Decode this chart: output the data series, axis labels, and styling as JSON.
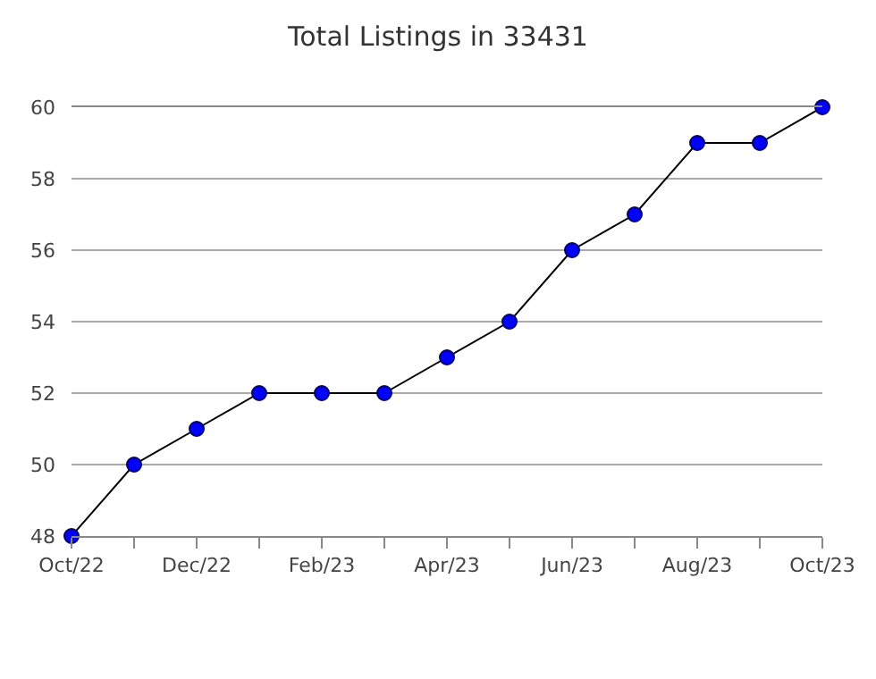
{
  "chart_data": {
    "type": "line",
    "title": "Total Listings in 33431",
    "categories": [
      "Oct/22",
      null,
      "Dec/22",
      null,
      "Feb/23",
      null,
      "Apr/23",
      null,
      "Jun/23",
      null,
      "Aug/23",
      null,
      "Oct/23"
    ],
    "series": [
      {
        "color": "#0000ff",
        "values": [
          48,
          50,
          51,
          52,
          52,
          52,
          53,
          54,
          56,
          57,
          59,
          59,
          60
        ]
      }
    ],
    "ylim": [
      48,
      60
    ],
    "yticks": [
      48,
      50,
      52,
      54,
      56,
      58,
      60
    ],
    "grid": "y",
    "marker": "circle",
    "line_style": "solid"
  }
}
